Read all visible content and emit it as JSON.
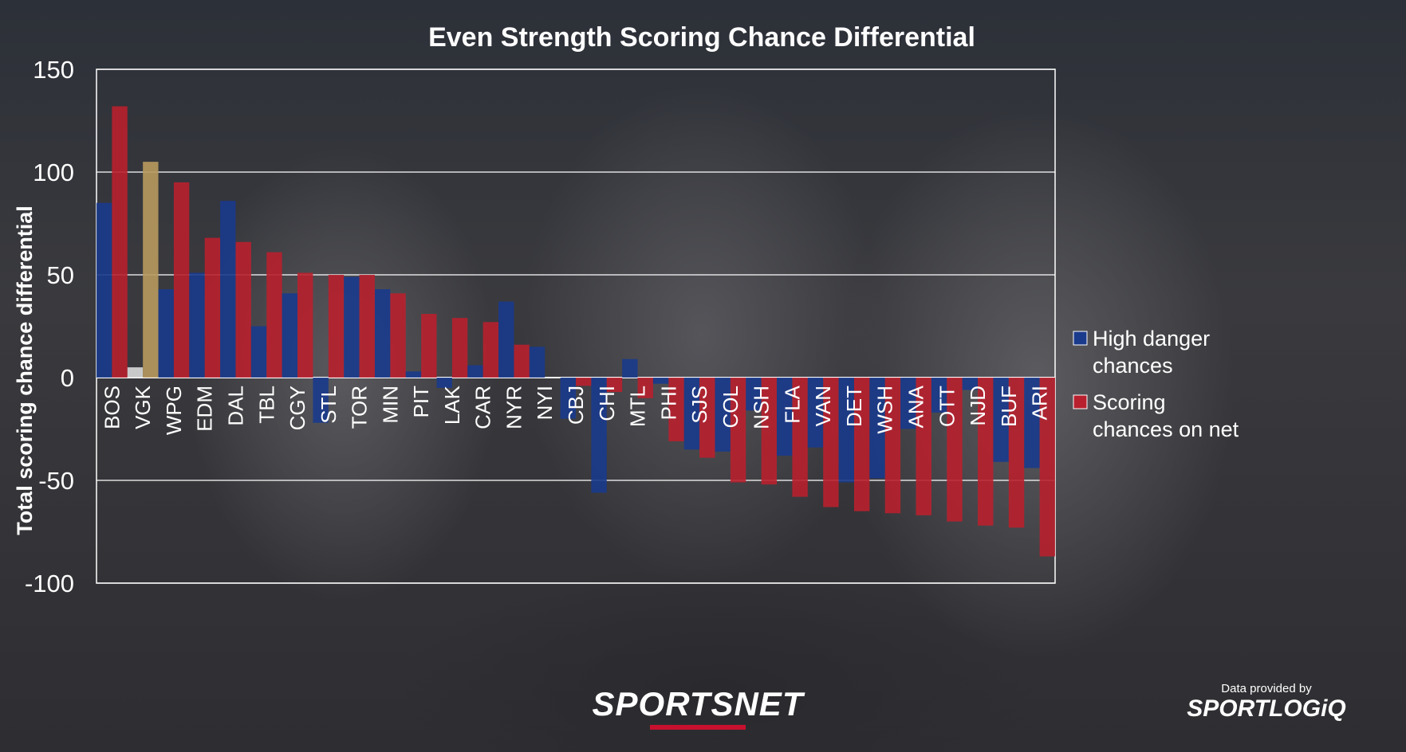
{
  "chart_data": {
    "type": "bar",
    "title": "Even Strength Scoring Chance Differential",
    "ylabel": "Total scoring chance differential",
    "xlabel": "",
    "ylim": [
      -100,
      150
    ],
    "yticks": [
      150,
      100,
      50,
      0,
      -50,
      -100
    ],
    "grid": true,
    "legend_position": "right",
    "categories": [
      "BOS",
      "VGK",
      "WPG",
      "EDM",
      "DAL",
      "TBL",
      "CGY",
      "STL",
      "TOR",
      "MIN",
      "PIT",
      "LAK",
      "CAR",
      "NYR",
      "NYI",
      "CBJ",
      "CHI",
      "MTL",
      "PHI",
      "SJS",
      "COL",
      "NSH",
      "FLA",
      "VAN",
      "DET",
      "WSH",
      "ANA",
      "OTT",
      "NJD",
      "BUF",
      "ARI"
    ],
    "series": [
      {
        "name": "High danger chances",
        "color": "#1a3a8c",
        "values": [
          85,
          5,
          43,
          51,
          86,
          25,
          41,
          -22,
          49,
          43,
          3,
          -5,
          6,
          37,
          15,
          -20,
          -56,
          9,
          -3,
          -35,
          -36,
          -16,
          -38,
          -34,
          -51,
          -49,
          -25,
          -17,
          -6,
          -41,
          -44
        ]
      },
      {
        "name": "Scoring chances on net",
        "color": "#b8202e",
        "values": [
          132,
          105,
          95,
          68,
          66,
          61,
          51,
          50,
          50,
          41,
          31,
          29,
          27,
          16,
          0,
          -4,
          -7,
          -10,
          -31,
          -39,
          -51,
          -52,
          -58,
          -63,
          -65,
          -66,
          -67,
          -70,
          -72,
          -73,
          -87
        ]
      }
    ],
    "highlight": {
      "category": "VGK",
      "colors": [
        "#d9d9d9",
        "#b89a5e"
      ]
    }
  },
  "branding": {
    "logo_main": "SPORTSNET",
    "credit_prefix": "Data provided by",
    "credit_logo": "SPORTLOGiQ"
  }
}
